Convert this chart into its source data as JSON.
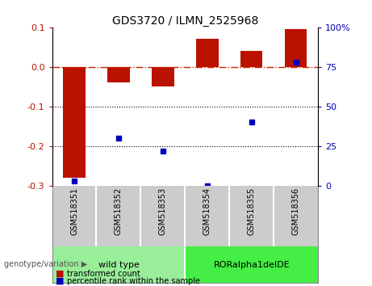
{
  "title": "GDS3720 / ILMN_2525968",
  "samples": [
    "GSM518351",
    "GSM518352",
    "GSM518353",
    "GSM518354",
    "GSM518355",
    "GSM518356"
  ],
  "transformed_count": [
    -0.28,
    -0.04,
    -0.05,
    0.07,
    0.04,
    0.095
  ],
  "percentile_rank": [
    3,
    30,
    22,
    0,
    40,
    78
  ],
  "ylim_left": [
    -0.3,
    0.1
  ],
  "ylim_right": [
    0,
    100
  ],
  "yticks_left": [
    -0.3,
    -0.2,
    -0.1,
    0.0,
    0.1
  ],
  "yticks_right": [
    0,
    25,
    50,
    75,
    100
  ],
  "bar_color": "#bb1100",
  "dot_color": "#0000bb",
  "zero_line_color": "#cc2200",
  "grid_color": "#000000",
  "group1_label": "wild type",
  "group2_label": "RORalpha1delDE",
  "group1_color": "#99ee99",
  "group2_color": "#44ee44",
  "genotype_label": "genotype/variation",
  "legend1": "transformed count",
  "legend2": "percentile rank within the sample",
  "title_color": "#000000",
  "bar_width": 0.5,
  "sample_bg_color": "#cccccc"
}
